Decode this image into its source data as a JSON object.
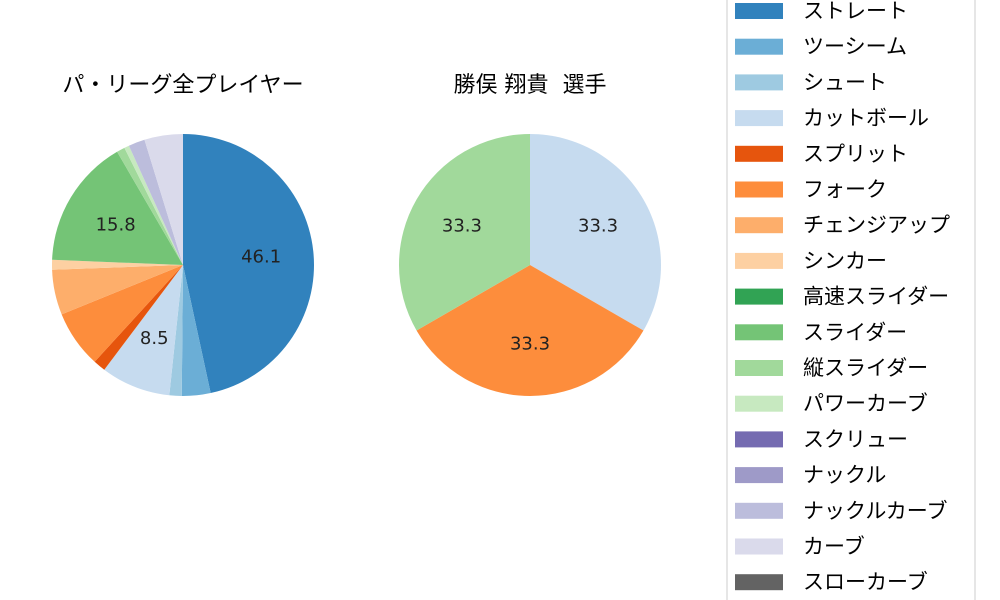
{
  "chart_data": [
    {
      "type": "pie",
      "title": "パ・リーグ全プレイヤー",
      "slices": [
        {
          "name": "ストレート",
          "value": 46.1,
          "label": "46.1",
          "color": "#3182bd"
        },
        {
          "name": "ツーシーム",
          "value": 3.5,
          "label": "",
          "color": "#6baed6"
        },
        {
          "name": "シュート",
          "value": 1.5,
          "label": "",
          "color": "#9ecae1"
        },
        {
          "name": "カットボール",
          "value": 8.5,
          "label": "8.5",
          "color": "#c6dbef"
        },
        {
          "name": "スプリット",
          "value": 1.5,
          "label": "",
          "color": "#e6550d"
        },
        {
          "name": "フォーク",
          "value": 7.0,
          "label": "",
          "color": "#fd8d3c"
        },
        {
          "name": "チェンジアップ",
          "value": 5.5,
          "label": "",
          "color": "#fdae6b"
        },
        {
          "name": "シンカー",
          "value": 1.2,
          "label": "",
          "color": "#fdd0a2"
        },
        {
          "name": "高速スライダー",
          "value": 0,
          "label": "",
          "color": "#31a354"
        },
        {
          "name": "スライダー",
          "value": 15.8,
          "label": "15.8",
          "color": "#74c476"
        },
        {
          "name": "縦スライダー",
          "value": 1.0,
          "label": "",
          "color": "#a1d99b"
        },
        {
          "name": "パワーカーブ",
          "value": 0.6,
          "label": "",
          "color": "#c7e9c0"
        },
        {
          "name": "スクリュー",
          "value": 0,
          "label": "",
          "color": "#756bb1"
        },
        {
          "name": "ナックル",
          "value": 0,
          "label": "",
          "color": "#9e9ac8"
        },
        {
          "name": "ナックルカーブ",
          "value": 2.0,
          "label": "",
          "color": "#bcbddc"
        },
        {
          "name": "カーブ",
          "value": 4.7,
          "label": "",
          "color": "#dadaeb"
        },
        {
          "name": "スローカーブ",
          "value": 0,
          "label": "",
          "color": "#636363"
        }
      ]
    },
    {
      "type": "pie",
      "title": "勝俣 翔貴  選手",
      "slices": [
        {
          "name": "カットボール",
          "value": 33.3,
          "label": "33.3",
          "color": "#c6dbef"
        },
        {
          "name": "フォーク",
          "value": 33.3,
          "label": "33.3",
          "color": "#fd8d3c"
        },
        {
          "name": "縦スライダー",
          "value": 33.3,
          "label": "33.3",
          "color": "#a1d99b"
        }
      ]
    }
  ],
  "legend": {
    "placement": "right",
    "entries": [
      {
        "label": "ストレート",
        "color": "#3182bd"
      },
      {
        "label": "ツーシーム",
        "color": "#6baed6"
      },
      {
        "label": "シュート",
        "color": "#9ecae1"
      },
      {
        "label": "カットボール",
        "color": "#c6dbef"
      },
      {
        "label": "スプリット",
        "color": "#e6550d"
      },
      {
        "label": "フォーク",
        "color": "#fd8d3c"
      },
      {
        "label": "チェンジアップ",
        "color": "#fdae6b"
      },
      {
        "label": "シンカー",
        "color": "#fdd0a2"
      },
      {
        "label": "高速スライダー",
        "color": "#31a354"
      },
      {
        "label": "スライダー",
        "color": "#74c476"
      },
      {
        "label": "縦スライダー",
        "color": "#a1d99b"
      },
      {
        "label": "パワーカーブ",
        "color": "#c7e9c0"
      },
      {
        "label": "スクリュー",
        "color": "#756bb1"
      },
      {
        "label": "ナックル",
        "color": "#9e9ac8"
      },
      {
        "label": "ナックルカーブ",
        "color": "#bcbddc"
      },
      {
        "label": "カーブ",
        "color": "#dadaeb"
      },
      {
        "label": "スローカーブ",
        "color": "#636363"
      }
    ]
  }
}
